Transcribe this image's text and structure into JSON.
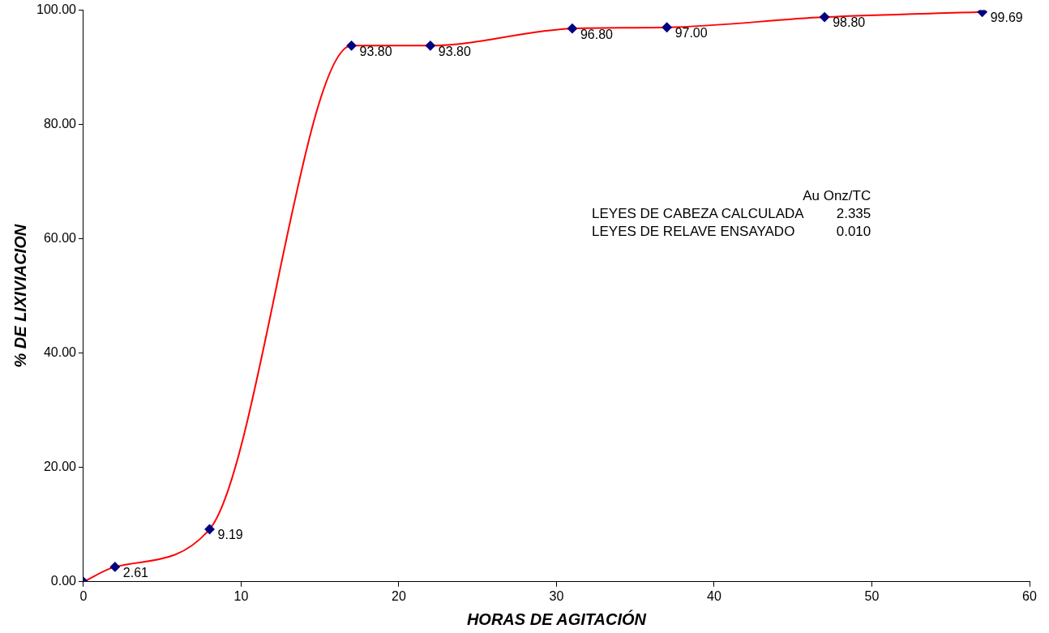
{
  "chart_data": {
    "type": "line",
    "xlabel": "HORAS DE AGITACIÓN",
    "ylabel": "% DE LIXIVIACION",
    "x": [
      0,
      2,
      8,
      17,
      22,
      31,
      37,
      47,
      57
    ],
    "series": [
      {
        "color": "#ff0000",
        "colors": [
          "#000080",
          "#000080",
          "#000080",
          "#000080",
          "#000080",
          "#000080",
          "#000080",
          "#000080",
          "#000080"
        ],
        "values": [
          0,
          2.61,
          9.19,
          93.8,
          93.8,
          96.8,
          97.0,
          98.8,
          99.69
        ],
        "value_labels": [
          null,
          "2.61",
          "9.19",
          "93.80",
          "93.80",
          "96.80",
          "97.00",
          "98.80",
          "99.69"
        ]
      }
    ],
    "marker": "diamond",
    "xlim": [
      0,
      60
    ],
    "xticks": [
      0,
      10,
      20,
      30,
      40,
      50,
      60
    ],
    "ylim": [
      0,
      100
    ],
    "yticks": [
      {
        "value": 0,
        "label": "0.00"
      },
      {
        "value": 20,
        "label": "20.00"
      },
      {
        "value": 40,
        "label": "40.00"
      },
      {
        "value": 60,
        "label": "60.00"
      },
      {
        "value": 80,
        "label": "80.00"
      },
      {
        "value": 100,
        "label": "100.00"
      }
    ],
    "annotations": [
      "Au Onz/TC",
      "LEYES DE CABEZA CALCULADA",
      "2.335",
      "LEYES DE RELAVE ENSAYADO",
      "0.010"
    ]
  }
}
